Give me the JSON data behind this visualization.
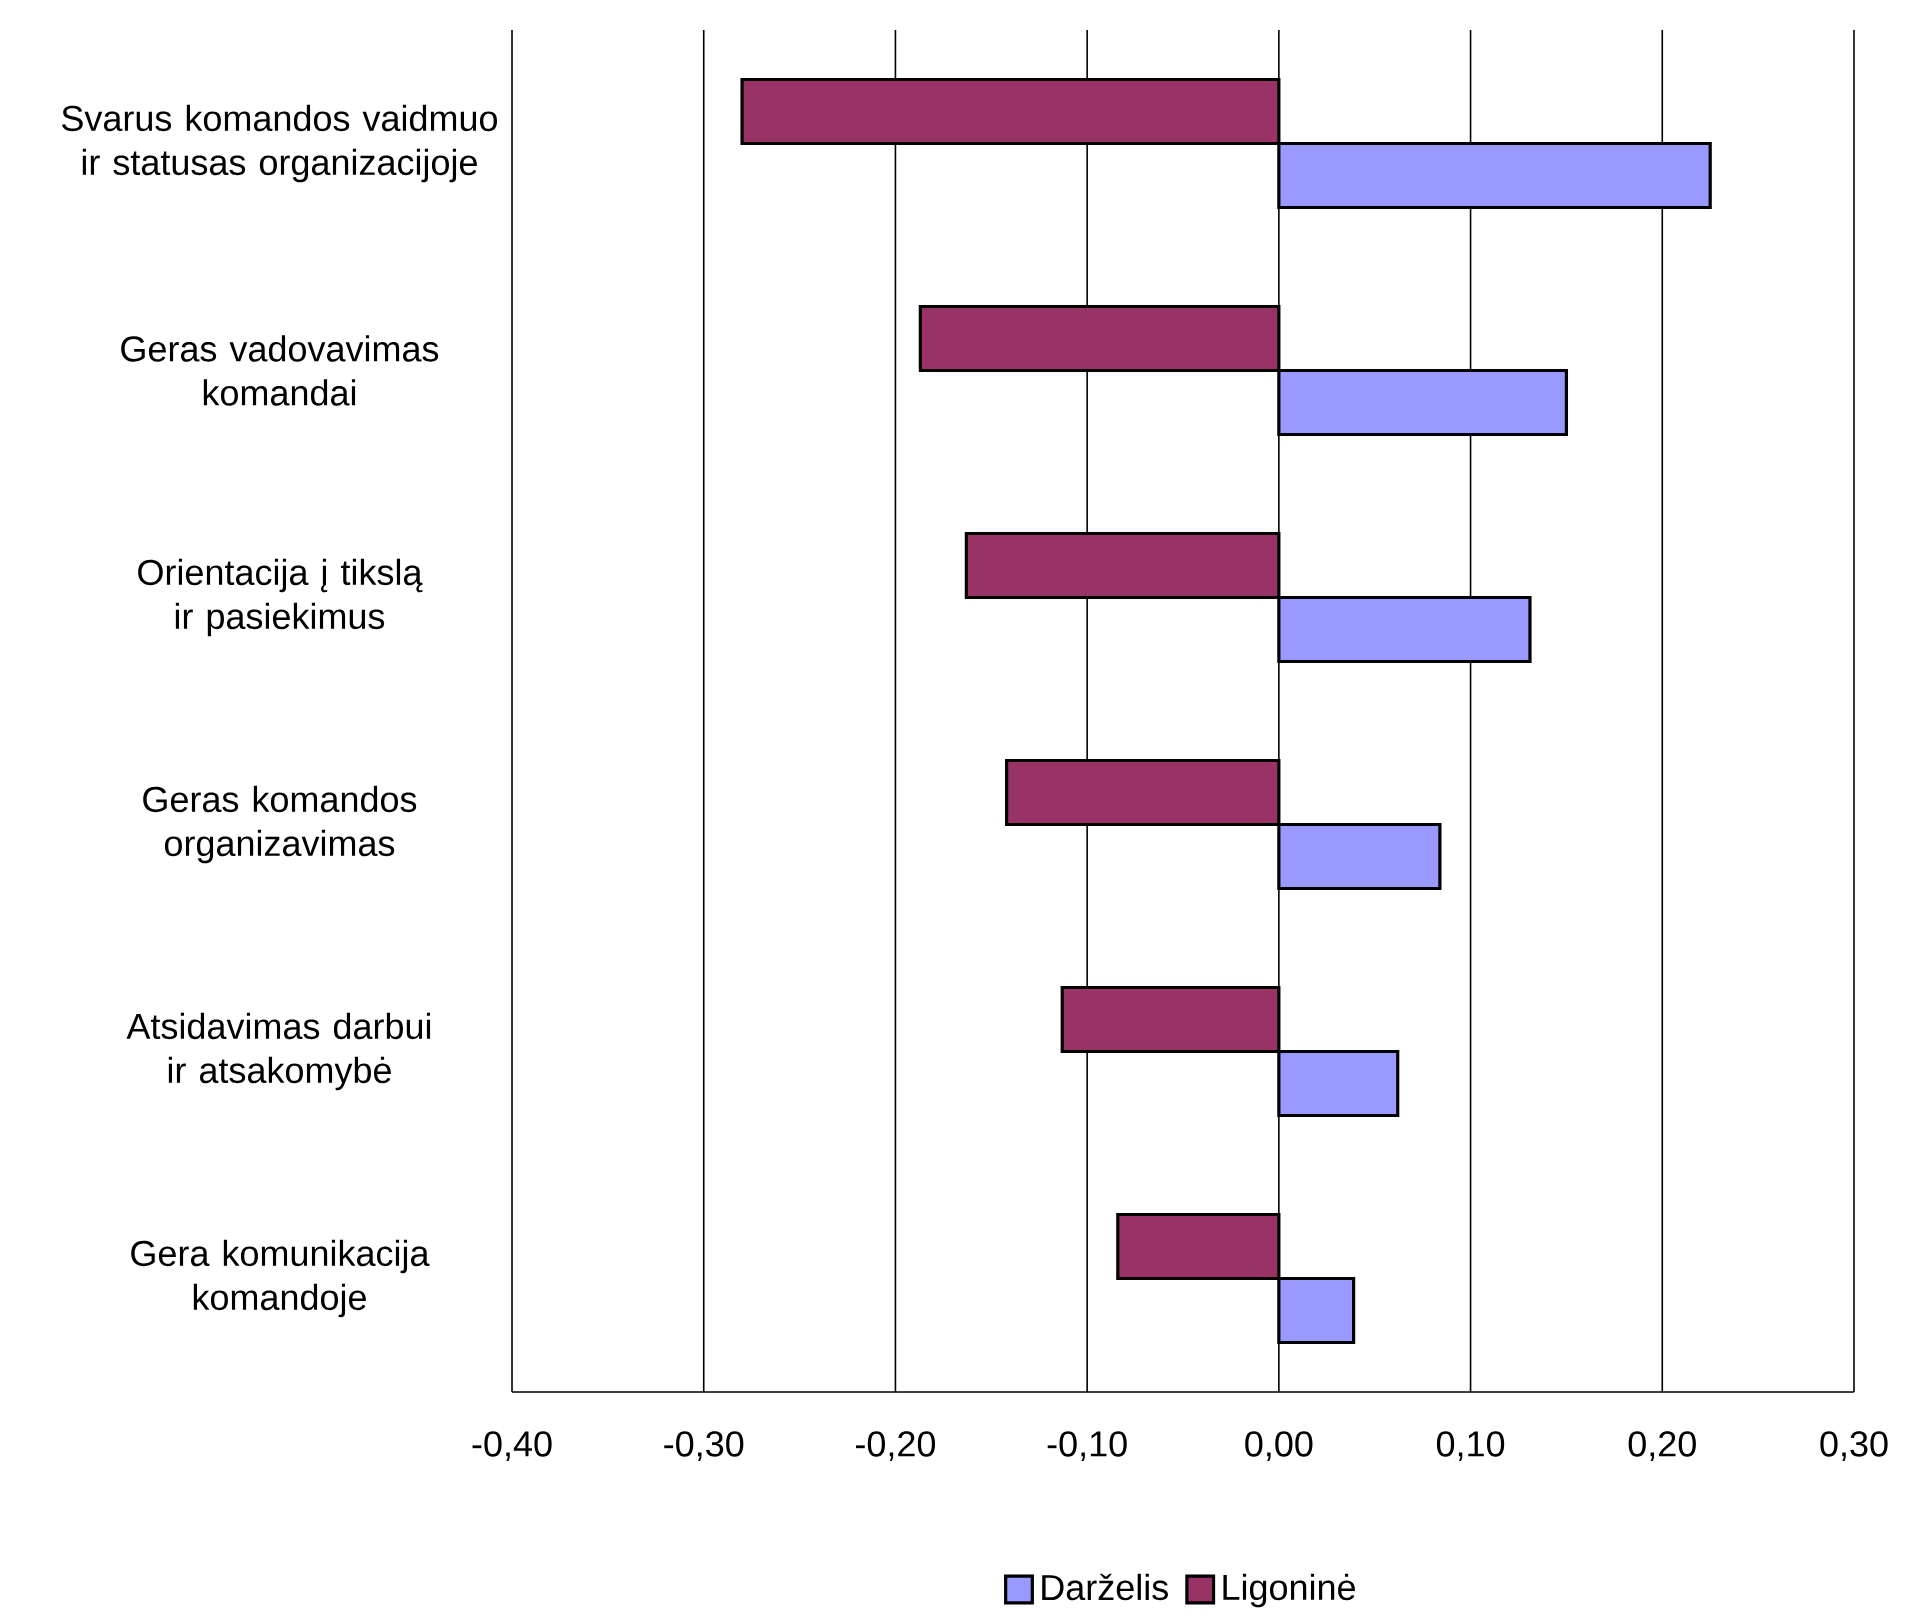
{
  "chart_data": {
    "type": "bar",
    "orientation": "horizontal",
    "categories": [
      "Svarus komandos vaidmuo ir statusas organizacijoje",
      "Geras vadovavimas komandai",
      "Orientacija į tikslą ir pasiekimus",
      "Geras komandos organizavimas",
      "Atsidavimas darbui ir atsakomybė",
      "Gera komunikacija komandoje"
    ],
    "series": [
      {
        "name": "Darželis",
        "color": "#9999ff",
        "values": [
          0.225,
          0.15,
          0.131,
          0.084,
          0.062,
          0.039
        ]
      },
      {
        "name": "Ligoninė",
        "color": "#993366",
        "values": [
          -0.28,
          -0.187,
          -0.163,
          -0.142,
          -0.113,
          -0.084
        ]
      }
    ],
    "xlim": [
      -0.4,
      0.3
    ],
    "xticks": [
      {
        "value": -0.4,
        "label": "-0,40"
      },
      {
        "value": -0.3,
        "label": "-0,30"
      },
      {
        "value": -0.2,
        "label": "-0,20"
      },
      {
        "value": -0.1,
        "label": "-0,10"
      },
      {
        "value": 0,
        "label": "0,00"
      },
      {
        "value": 0.1,
        "label": "0,10"
      },
      {
        "value": 0.2,
        "label": "0,20"
      },
      {
        "value": 0.3,
        "label": "0,30"
      }
    ],
    "grid": "x",
    "legend": "bottom"
  }
}
